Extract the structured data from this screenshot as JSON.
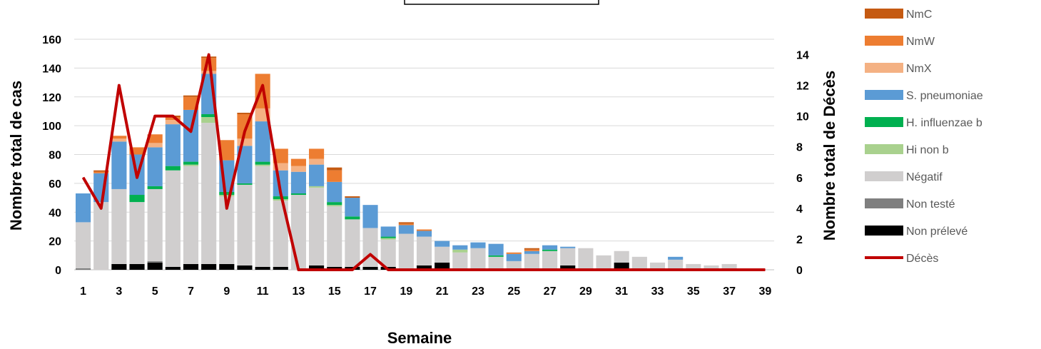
{
  "chart_data": {
    "type": "bar",
    "stacked": true,
    "title": "",
    "xlabel": "Semaine",
    "ylabel": "Nombre total de cas",
    "y2label": "Nombre total de Décès",
    "ylim": [
      0,
      160
    ],
    "y2lim": [
      0,
      15
    ],
    "yticks": [
      0,
      20,
      40,
      60,
      80,
      100,
      120,
      140,
      160
    ],
    "y2ticks": [
      0,
      2,
      4,
      6,
      8,
      10,
      12,
      14
    ],
    "grid": true,
    "legend_position": "right",
    "categories": [
      1,
      2,
      3,
      4,
      5,
      6,
      7,
      8,
      9,
      10,
      11,
      12,
      13,
      14,
      15,
      16,
      17,
      18,
      19,
      20,
      21,
      22,
      23,
      24,
      25,
      26,
      27,
      28,
      29,
      30,
      31,
      32,
      33,
      34,
      35,
      36,
      37,
      38,
      39
    ],
    "xtick_labels": [
      "1",
      "3",
      "5",
      "7",
      "9",
      "11",
      "13",
      "15",
      "17",
      "19",
      "21",
      "23",
      "25",
      "27",
      "29",
      "31",
      "33",
      "35",
      "37",
      "39"
    ],
    "series": [
      {
        "name": "Non prélevé",
        "color": "#000000",
        "values": [
          0,
          0,
          4,
          4,
          5,
          2,
          4,
          4,
          4,
          3,
          2,
          2,
          0,
          3,
          2,
          2,
          2,
          2,
          0,
          3,
          5,
          0,
          0,
          0,
          0,
          0,
          0,
          3,
          0,
          0,
          5,
          1,
          0,
          0,
          0,
          0,
          0,
          0,
          0
        ]
      },
      {
        "name": "Non testé",
        "color": "#7f7f7f",
        "values": [
          1,
          0,
          0,
          0,
          1,
          0,
          0,
          0,
          0,
          0,
          0,
          0,
          0,
          0,
          0,
          0,
          0,
          0,
          0,
          0,
          0,
          0,
          0,
          0,
          0,
          0,
          0,
          0,
          0,
          0,
          0,
          0,
          0,
          0,
          0,
          0,
          0,
          0,
          0
        ]
      },
      {
        "name": "Négatif",
        "color": "#d0cece",
        "values": [
          32,
          47,
          52,
          43,
          50,
          67,
          68,
          98,
          47,
          56,
          70,
          46,
          52,
          54,
          42,
          33,
          27,
          19,
          25,
          20,
          11,
          12,
          15,
          9,
          6,
          11,
          13,
          12,
          15,
          10,
          8,
          8,
          5,
          7,
          4,
          3,
          4,
          0,
          0
        ]
      },
      {
        "name": "Hi non b",
        "color": "#a9d18e",
        "values": [
          0,
          0,
          0,
          0,
          0,
          0,
          1,
          4,
          1,
          0,
          1,
          1,
          0,
          1,
          1,
          0,
          0,
          1,
          0,
          0,
          0,
          2,
          0,
          0,
          0,
          0,
          0,
          0,
          0,
          0,
          0,
          0,
          0,
          0,
          0,
          0,
          0,
          0,
          0
        ]
      },
      {
        "name": "H. influenzae b",
        "color": "#00b050",
        "values": [
          0,
          0,
          0,
          5,
          2,
          3,
          2,
          2,
          2,
          1,
          2,
          2,
          1,
          0,
          2,
          2,
          0,
          1,
          0,
          0,
          0,
          0,
          0,
          1,
          0,
          0,
          1,
          0,
          0,
          0,
          0,
          0,
          0,
          0,
          0,
          0,
          0,
          0,
          0
        ]
      },
      {
        "name": "S. pneumoniae",
        "color": "#5b9bd5",
        "values": [
          20,
          20,
          33,
          28,
          27,
          29,
          36,
          28,
          22,
          26,
          28,
          18,
          15,
          15,
          14,
          13,
          16,
          7,
          6,
          4,
          4,
          3,
          4,
          8,
          5,
          2,
          3,
          1,
          0,
          0,
          0,
          0,
          0,
          2,
          0,
          0,
          0,
          0,
          0
        ]
      },
      {
        "name": "NmX",
        "color": "#f4b183",
        "values": [
          0,
          0,
          2,
          0,
          3,
          3,
          0,
          2,
          0,
          5,
          9,
          5,
          4,
          4,
          0,
          0,
          0,
          0,
          0,
          0,
          0,
          0,
          0,
          0,
          0,
          0,
          0,
          0,
          0,
          0,
          0,
          0,
          0,
          0,
          0,
          0,
          0,
          0,
          0
        ]
      },
      {
        "name": "NmW",
        "color": "#ed7d31",
        "values": [
          0,
          1,
          2,
          5,
          6,
          2,
          9,
          9,
          14,
          17,
          24,
          10,
          5,
          7,
          8,
          0,
          0,
          0,
          1,
          1,
          0,
          0,
          0,
          0,
          1,
          1,
          0,
          0,
          0,
          0,
          0,
          0,
          0,
          0,
          0,
          0,
          0,
          0,
          0
        ]
      },
      {
        "name": "NmC",
        "color": "#c55a11",
        "values": [
          0,
          1,
          0,
          0,
          0,
          1,
          1,
          1,
          0,
          1,
          0,
          0,
          0,
          0,
          2,
          1,
          0,
          0,
          1,
          0,
          0,
          0,
          0,
          0,
          0,
          1,
          0,
          0,
          0,
          0,
          0,
          0,
          0,
          0,
          0,
          0,
          0,
          0,
          0
        ]
      }
    ],
    "line": {
      "name": "Décès",
      "color": "#c00000",
      "axis": "right",
      "values": [
        6,
        4,
        12,
        6,
        10,
        10,
        9,
        14,
        4,
        9,
        12,
        5,
        0,
        0,
        0,
        0,
        1,
        0,
        0,
        0,
        0,
        0,
        0,
        0,
        0,
        0,
        0,
        0,
        0,
        0,
        0,
        0,
        0,
        0,
        0,
        0,
        0,
        0,
        0
      ]
    },
    "legend": [
      {
        "name": "NmC",
        "color": "#c55a11",
        "kind": "box"
      },
      {
        "name": "NmW",
        "color": "#ed7d31",
        "kind": "box"
      },
      {
        "name": "NmX",
        "color": "#f4b183",
        "kind": "box"
      },
      {
        "name": "S. pneumoniae",
        "color": "#5b9bd5",
        "kind": "box"
      },
      {
        "name": "H. influenzae b",
        "color": "#00b050",
        "kind": "box"
      },
      {
        "name": "Hi non b",
        "color": "#a9d18e",
        "kind": "box"
      },
      {
        "name": "Négatif",
        "color": "#d0cece",
        "kind": "box"
      },
      {
        "name": "Non testé",
        "color": "#7f7f7f",
        "kind": "box"
      },
      {
        "name": "Non prélevé",
        "color": "#000000",
        "kind": "box"
      },
      {
        "name": "Décès",
        "color": "#c00000",
        "kind": "line"
      }
    ]
  }
}
